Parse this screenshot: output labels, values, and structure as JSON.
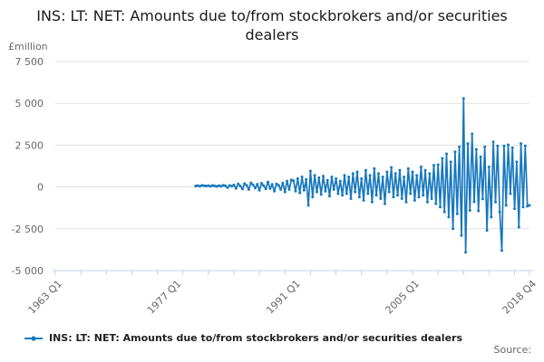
{
  "chart_data": {
    "type": "line",
    "title": "INS: LT: NET: Amounts due to/from stockbrokers and/or securities dealers",
    "y_axis": {
      "unit_label": "£million",
      "ylim": [
        -5000,
        7500
      ],
      "ticks": [
        {
          "label": "7 500",
          "value": 7500
        },
        {
          "label": "5 000",
          "value": 5000
        },
        {
          "label": "2 500",
          "value": 2500
        },
        {
          "label": "0",
          "value": 0
        },
        {
          "label": "-2 500",
          "value": -2500
        },
        {
          "label": "-5 000",
          "value": -5000
        }
      ],
      "gridlines": true
    },
    "x_axis": {
      "frequency": "quarterly",
      "total_quarter_span": 224,
      "labeled_ticks": [
        {
          "label": "1963 Q1",
          "quarter_index": 0
        },
        {
          "label": "1977 Q1",
          "quarter_index": 56
        },
        {
          "label": "1991 Q1",
          "quarter_index": 112
        },
        {
          "label": "2005 Q1",
          "quarter_index": 168
        },
        {
          "label": "2018 Q4",
          "quarter_index": 223
        }
      ]
    },
    "series": [
      {
        "name": "INS: LT: NET: Amounts due to/from stockbrokers and/or securities dealers",
        "color": "#1878bf",
        "start_period": "1979 Q3",
        "start_quarter_index": 66,
        "frequency": "quarterly",
        "values": [
          60,
          80,
          50,
          90,
          70,
          60,
          80,
          40,
          90,
          60,
          30,
          80,
          50,
          100,
          70,
          -40,
          90,
          50,
          120,
          -80,
          180,
          60,
          -120,
          200,
          90,
          -150,
          250,
          130,
          -60,
          160,
          -200,
          220,
          80,
          -120,
          300,
          -90,
          150,
          -250,
          180,
          100,
          -150,
          240,
          -300,
          350,
          -150,
          420,
          380,
          -250,
          500,
          -350,
          600,
          -200,
          450,
          -1100,
          950,
          -600,
          700,
          -300,
          550,
          -450,
          650,
          -250,
          400,
          -550,
          600,
          -150,
          500,
          -400,
          350,
          -500,
          700,
          -400,
          600,
          -700,
          800,
          -300,
          900,
          -600,
          500,
          -800,
          1000,
          -400,
          700,
          -900,
          1100,
          -500,
          800,
          -700,
          600,
          -1000,
          900,
          -300,
          1170,
          -600,
          800,
          -500,
          1000,
          -700,
          600,
          -900,
          1100,
          -400,
          900,
          -800,
          700,
          -600,
          1200,
          -500,
          1000,
          -900,
          800,
          -700,
          1300,
          -1000,
          1330,
          -1200,
          1710,
          -1500,
          1980,
          -1800,
          1500,
          -2500,
          2100,
          -1600,
          2400,
          -2900,
          5300,
          -3900,
          2600,
          -1400,
          3170,
          -890,
          2250,
          -1430,
          1800,
          -720,
          2400,
          -2600,
          1200,
          -1800,
          2700,
          -900,
          2450,
          -1500,
          -3800,
          2450,
          -1100,
          2520,
          -400,
          2350,
          -1300,
          1500,
          -2400,
          2600,
          -1200,
          2460,
          -1150,
          -1100
        ]
      }
    ],
    "style": {
      "line_color": "#1878bf",
      "grid_color": "#e1e1e1",
      "axis_color": "#c6cfe3",
      "tick_label_color": "#666666",
      "title_color": "#1a1a1a"
    },
    "legend_position": "bottom-left"
  },
  "legend": {
    "items": [
      {
        "label": "INS: LT: NET: Amounts due to/from stockbrokers and/or securities dealers",
        "color": "#1878bf"
      }
    ]
  },
  "footer": {
    "source_label": "Source:"
  }
}
